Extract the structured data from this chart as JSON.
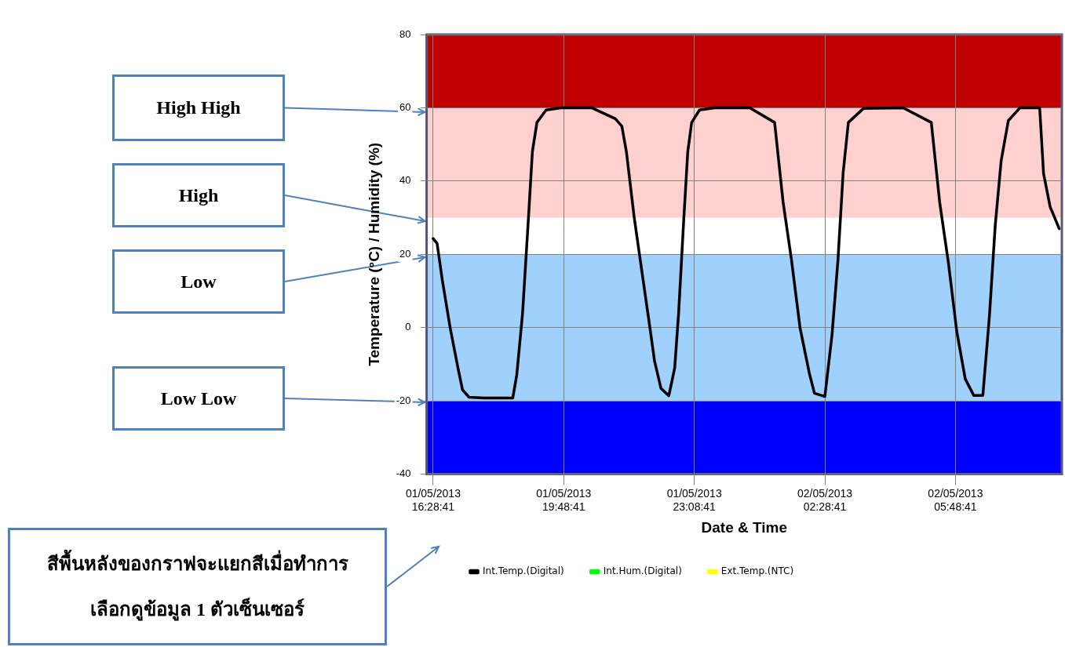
{
  "chart_data": {
    "type": "line",
    "xlabel": "Date & Time",
    "ylabel": "Temperature (°C) / Humidity (%)",
    "xlim": [
      "2013-05-01T16:19",
      "2013-05-02T08:32"
    ],
    "xticks": [
      {
        "value": "2013-05-01T16:29",
        "label": "01/05/2013 16:28:41"
      },
      {
        "value": "2013-05-01T19:49",
        "label": "01/05/2013 19:48:41"
      },
      {
        "value": "2013-05-01T23:09",
        "label": "01/05/2013 23:08:41"
      },
      {
        "value": "2013-05-02T02:29",
        "label": "02/05/2013 02:28:41"
      },
      {
        "value": "2013-05-02T05:49",
        "label": "02/05/2013 05:48:41"
      }
    ],
    "ylim": [
      -40,
      80
    ],
    "yticks": [
      -40,
      -20,
      0,
      20,
      40,
      60,
      80
    ],
    "grid": true,
    "legend": "bottom",
    "marker": "none",
    "line_style": "solid",
    "bands": [
      {
        "axis": "y",
        "from": 60,
        "to": 80,
        "color": "#c00000"
      },
      {
        "axis": "y",
        "from": 30,
        "to": 60,
        "color": "#ffd0d0"
      },
      {
        "axis": "y",
        "from": -20,
        "to": 20,
        "color": "#a0d0fc"
      },
      {
        "axis": "y",
        "from": -40,
        "to": -20,
        "color": "#0000ff"
      }
    ],
    "series": [
      {
        "name": "Int.Temp.(Digital)",
        "color": "#000000",
        "x": [
          "2013-05-01T16:29",
          "2013-05-01T16:35",
          "2013-05-01T16:43",
          "2013-05-01T16:55",
          "2013-05-01T17:07",
          "2013-05-01T17:14",
          "2013-05-01T17:24",
          "2013-05-01T17:47",
          "2013-05-01T18:31",
          "2013-05-01T18:37",
          "2013-05-01T18:46",
          "2013-05-01T18:55",
          "2013-05-01T19:01",
          "2013-05-01T19:08",
          "2013-05-01T19:22",
          "2013-05-01T19:45",
          "2013-05-01T20:32",
          "2013-05-01T20:44",
          "2013-05-01T21:08",
          "2013-05-01T21:18",
          "2013-05-01T21:25",
          "2013-05-01T21:37",
          "2013-05-01T21:49",
          "2013-05-01T22:01",
          "2013-05-01T22:08",
          "2013-05-01T22:18",
          "2013-05-01T22:30",
          "2013-05-01T22:39",
          "2013-05-01T22:45",
          "2013-05-01T22:53",
          "2013-05-01T22:59",
          "2013-05-01T23:05",
          "2013-05-01T23:17",
          "2013-05-01T23:40",
          "2013-05-02T00:34",
          "2013-05-02T01:12",
          "2013-05-02T01:25",
          "2013-05-02T01:38",
          "2013-05-02T01:51",
          "2013-05-02T02:05",
          "2013-05-02T02:13",
          "2013-05-02T02:29",
          "2013-05-02T02:40",
          "2013-05-02T02:49",
          "2013-05-02T02:57",
          "2013-05-02T03:05",
          "2013-05-02T03:28",
          "2013-05-02T04:29",
          "2013-05-02T05:12",
          "2013-05-02T05:25",
          "2013-05-02T05:38",
          "2013-05-02T05:51",
          "2013-05-02T06:04",
          "2013-05-02T06:17",
          "2013-05-02T06:31",
          "2013-05-02T06:41",
          "2013-05-02T06:50",
          "2013-05-02T06:59",
          "2013-05-02T07:10",
          "2013-05-02T07:28",
          "2013-05-02T07:58",
          "2013-05-02T08:04",
          "2013-05-02T08:14",
          "2013-05-02T08:28"
        ],
        "values": [
          24.3,
          23,
          13,
          0,
          -11,
          -17,
          -19,
          -19.2,
          -19.2,
          -13,
          4,
          30,
          48,
          56,
          59.4,
          60,
          60,
          59,
          57,
          55,
          48,
          30,
          15,
          0,
          -9,
          -16.6,
          -18.6,
          -11,
          4,
          30,
          48,
          56,
          59.4,
          60,
          60,
          56,
          34.3,
          18.3,
          -0.1,
          -12.3,
          -17.9,
          -18.8,
          -1.9,
          18.3,
          42.3,
          56,
          59.8,
          60,
          56,
          34,
          18,
          -1,
          -14,
          -18.5,
          -18.5,
          3,
          28,
          45.5,
          56.5,
          60,
          60,
          42,
          33,
          27
        ]
      },
      {
        "name": "Int.Hum.(Digital)",
        "color": "#00ff00"
      },
      {
        "name": "Ext.Temp.(NTC)",
        "color": "#ffff00"
      }
    ],
    "annotations": [
      "High High",
      "High",
      "Low",
      "Low Low",
      "สีพื้นหลังของกราฟจะแยกสีเมื่อทำการเลือกดูข้อมูล 1 ตัวเซ็นเซอร์"
    ]
  }
}
